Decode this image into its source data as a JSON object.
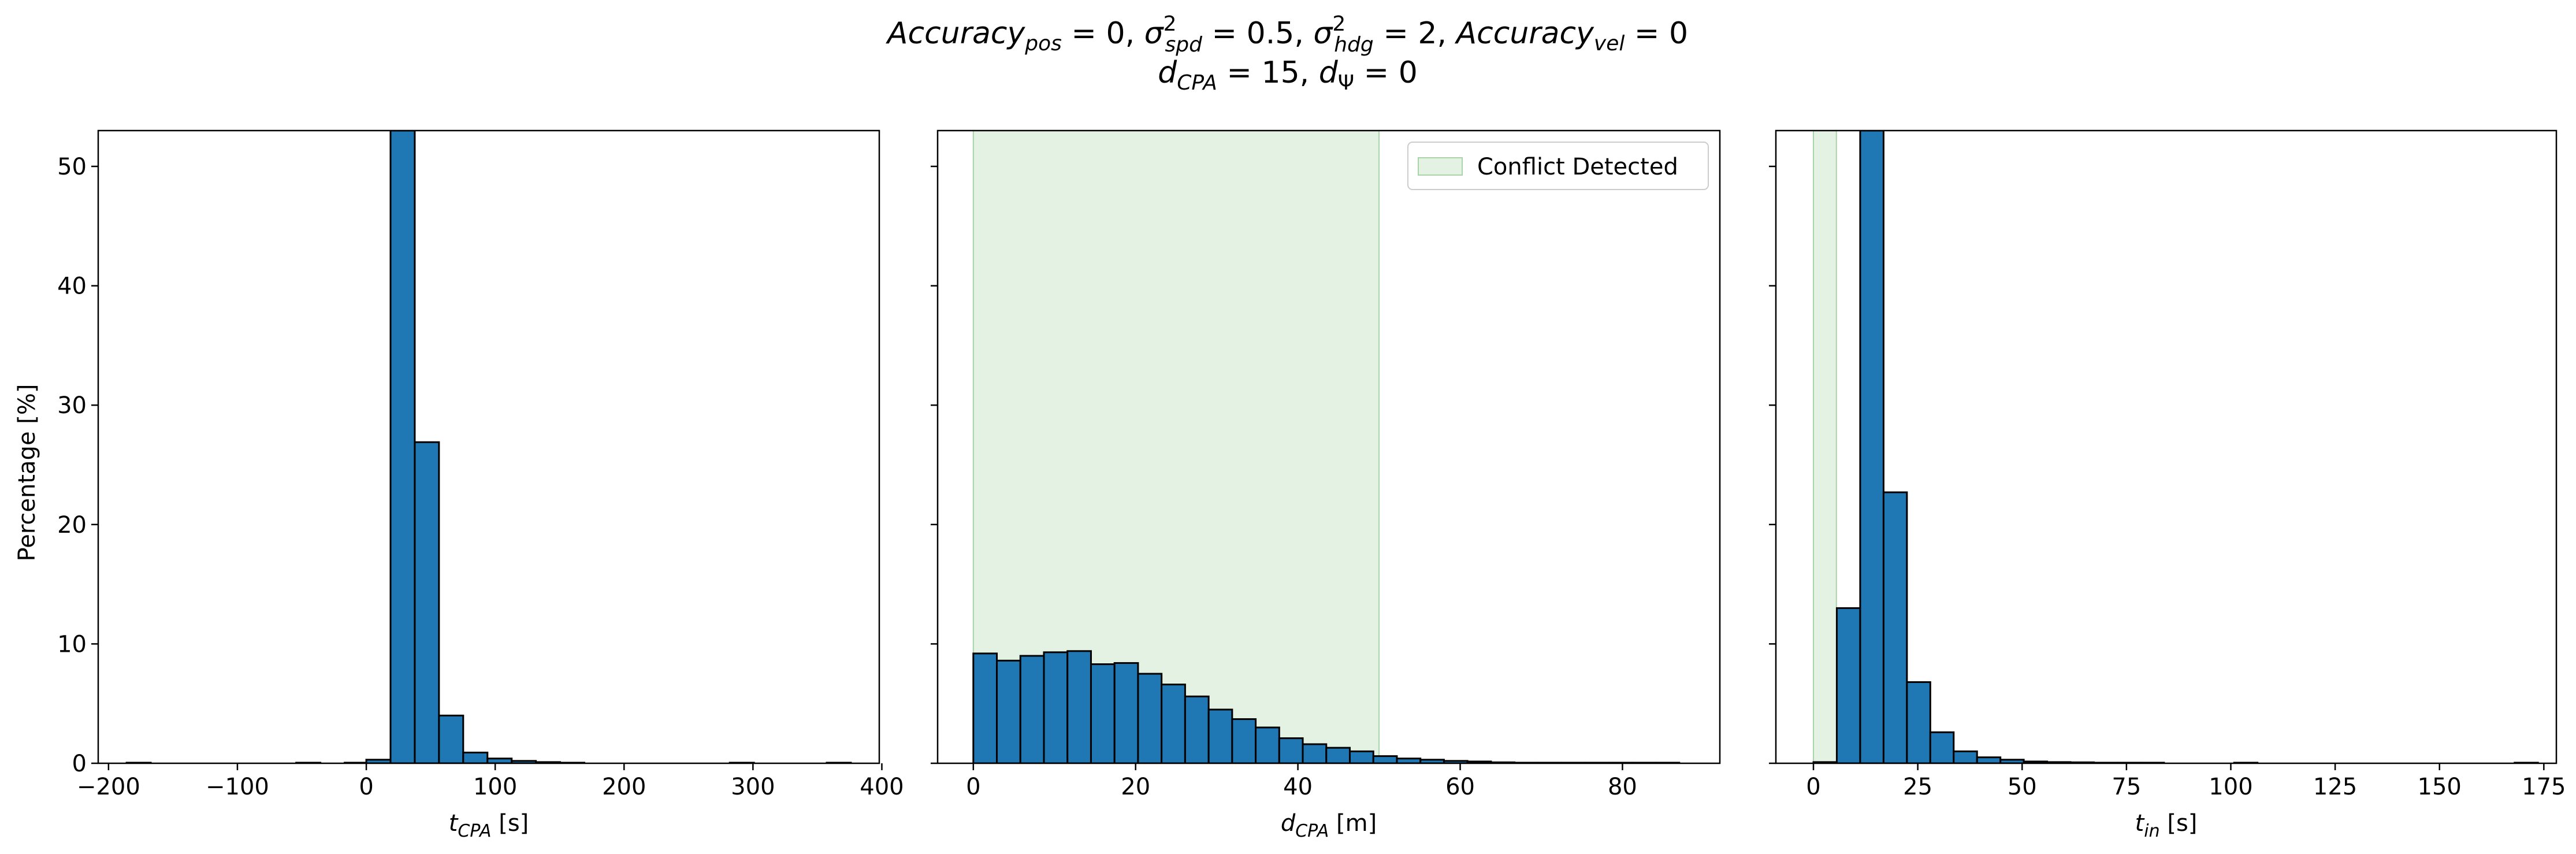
{
  "figure": {
    "title_line1": "Accuracy_pos = 0, σ²_spd = 0.5, σ²_hdg = 2, Accuracy_vel = 0",
    "title_line2": "d_CPA = 15, d_Ψ = 0"
  },
  "colors": {
    "bar_fill": "#1f77b4",
    "bar_edge": "#000000",
    "conflict_fill": "#c9e6c9",
    "conflict_edge": "#a9d4a9"
  },
  "chart_data": [
    {
      "type": "bar",
      "id": "tcpa",
      "xlabel": "t_CPA [s]",
      "ylabel": "Percentage [%]",
      "xlim": [
        -208,
        398
      ],
      "ylim": [
        0,
        53
      ],
      "xticks": [
        -200,
        -100,
        0,
        100,
        200,
        300,
        400
      ],
      "yticks": [
        0,
        10,
        20,
        30,
        40,
        50
      ],
      "show_ytick_labels": true,
      "bin_width": 18.8,
      "bins": [
        {
          "x0": -186.0,
          "value": 0.05
        },
        {
          "x0": -54.4,
          "value": 0.05
        },
        {
          "x0": -16.8,
          "value": 0.05
        },
        {
          "x0": 0.0,
          "value": 0.3
        },
        {
          "x0": 18.8,
          "value": 53.0
        },
        {
          "x0": 37.6,
          "value": 26.9
        },
        {
          "x0": 56.4,
          "value": 4.0
        },
        {
          "x0": 75.2,
          "value": 0.9
        },
        {
          "x0": 94.0,
          "value": 0.4
        },
        {
          "x0": 112.8,
          "value": 0.2
        },
        {
          "x0": 131.6,
          "value": 0.1
        },
        {
          "x0": 150.4,
          "value": 0.05
        },
        {
          "x0": 282.0,
          "value": 0.05
        },
        {
          "x0": 357.2,
          "value": 0.05
        }
      ]
    },
    {
      "type": "bar",
      "id": "dcpa",
      "xlabel": "d_CPA [m]",
      "xlim": [
        -4.4,
        92.0
      ],
      "ylim": [
        0,
        53
      ],
      "xticks": [
        0,
        20,
        40,
        60,
        80
      ],
      "yticks": [
        0,
        10,
        20,
        30,
        40,
        50
      ],
      "show_ytick_labels": false,
      "shade": {
        "x0": 0,
        "x1": 50
      },
      "legend": {
        "label": "Conflict Detected",
        "position": "upper right"
      },
      "bin_width": 2.9,
      "bins": [
        {
          "x0": 0.0,
          "value": 9.2
        },
        {
          "x0": 2.9,
          "value": 8.6
        },
        {
          "x0": 5.8,
          "value": 9.0
        },
        {
          "x0": 8.7,
          "value": 9.3
        },
        {
          "x0": 11.6,
          "value": 9.4
        },
        {
          "x0": 14.5,
          "value": 8.3
        },
        {
          "x0": 17.4,
          "value": 8.4
        },
        {
          "x0": 20.3,
          "value": 7.5
        },
        {
          "x0": 23.2,
          "value": 6.6
        },
        {
          "x0": 26.1,
          "value": 5.6
        },
        {
          "x0": 29.0,
          "value": 4.5
        },
        {
          "x0": 31.9,
          "value": 3.7
        },
        {
          "x0": 34.8,
          "value": 3.0
        },
        {
          "x0": 37.7,
          "value": 2.1
        },
        {
          "x0": 40.6,
          "value": 1.6
        },
        {
          "x0": 43.5,
          "value": 1.3
        },
        {
          "x0": 46.4,
          "value": 1.0
        },
        {
          "x0": 49.3,
          "value": 0.6
        },
        {
          "x0": 52.2,
          "value": 0.4
        },
        {
          "x0": 55.1,
          "value": 0.3
        },
        {
          "x0": 58.0,
          "value": 0.2
        },
        {
          "x0": 60.9,
          "value": 0.15
        },
        {
          "x0": 63.8,
          "value": 0.08
        },
        {
          "x0": 66.7,
          "value": 0.05
        },
        {
          "x0": 69.6,
          "value": 0.05
        },
        {
          "x0": 72.5,
          "value": 0.05
        },
        {
          "x0": 75.4,
          "value": 0.05
        },
        {
          "x0": 78.3,
          "value": 0.05
        },
        {
          "x0": 81.2,
          "value": 0.05
        },
        {
          "x0": 84.1,
          "value": 0.05
        }
      ]
    },
    {
      "type": "bar",
      "id": "tin",
      "xlabel": "t_in [s]",
      "xlim": [
        -9.0,
        178.0
      ],
      "ylim": [
        0,
        53
      ],
      "xticks": [
        0,
        25,
        50,
        75,
        100,
        125,
        150,
        175
      ],
      "yticks": [
        0,
        10,
        20,
        30,
        40,
        50
      ],
      "show_ytick_labels": false,
      "shade": {
        "x0": 0,
        "x1": 5.5
      },
      "bin_width": 5.6,
      "bins": [
        {
          "x0": 0.0,
          "value": 0.1
        },
        {
          "x0": 5.6,
          "value": 13.0
        },
        {
          "x0": 11.2,
          "value": 53.0
        },
        {
          "x0": 16.8,
          "value": 22.7
        },
        {
          "x0": 22.4,
          "value": 6.8
        },
        {
          "x0": 28.0,
          "value": 2.6
        },
        {
          "x0": 33.6,
          "value": 1.0
        },
        {
          "x0": 39.2,
          "value": 0.5
        },
        {
          "x0": 44.8,
          "value": 0.3
        },
        {
          "x0": 50.4,
          "value": 0.15
        },
        {
          "x0": 56.0,
          "value": 0.1
        },
        {
          "x0": 61.6,
          "value": 0.08
        },
        {
          "x0": 67.2,
          "value": 0.05
        },
        {
          "x0": 72.8,
          "value": 0.05
        },
        {
          "x0": 78.4,
          "value": 0.05
        },
        {
          "x0": 100.8,
          "value": 0.05
        },
        {
          "x0": 168.0,
          "value": 0.05
        }
      ]
    }
  ]
}
